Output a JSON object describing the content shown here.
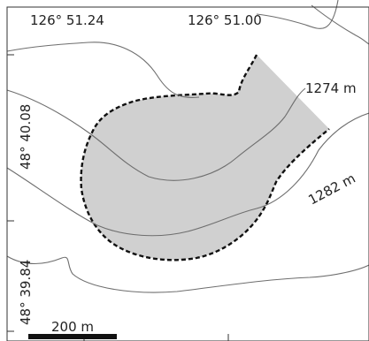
{
  "map": {
    "longitude_labels": [
      "126° 51.24",
      "126° 51.00"
    ],
    "latitude_labels": [
      "48° 40.08",
      "48° 39.84"
    ],
    "contour_labels": [
      "1274 m",
      "1282 m"
    ],
    "scale_bar": {
      "label": "200 m",
      "length_m": 200
    },
    "colors": {
      "highlight_fill": "#d0d0d0",
      "contour_stroke": "#6e6e6e",
      "outline_stroke": "#111111",
      "frame_stroke": "#333333"
    }
  }
}
